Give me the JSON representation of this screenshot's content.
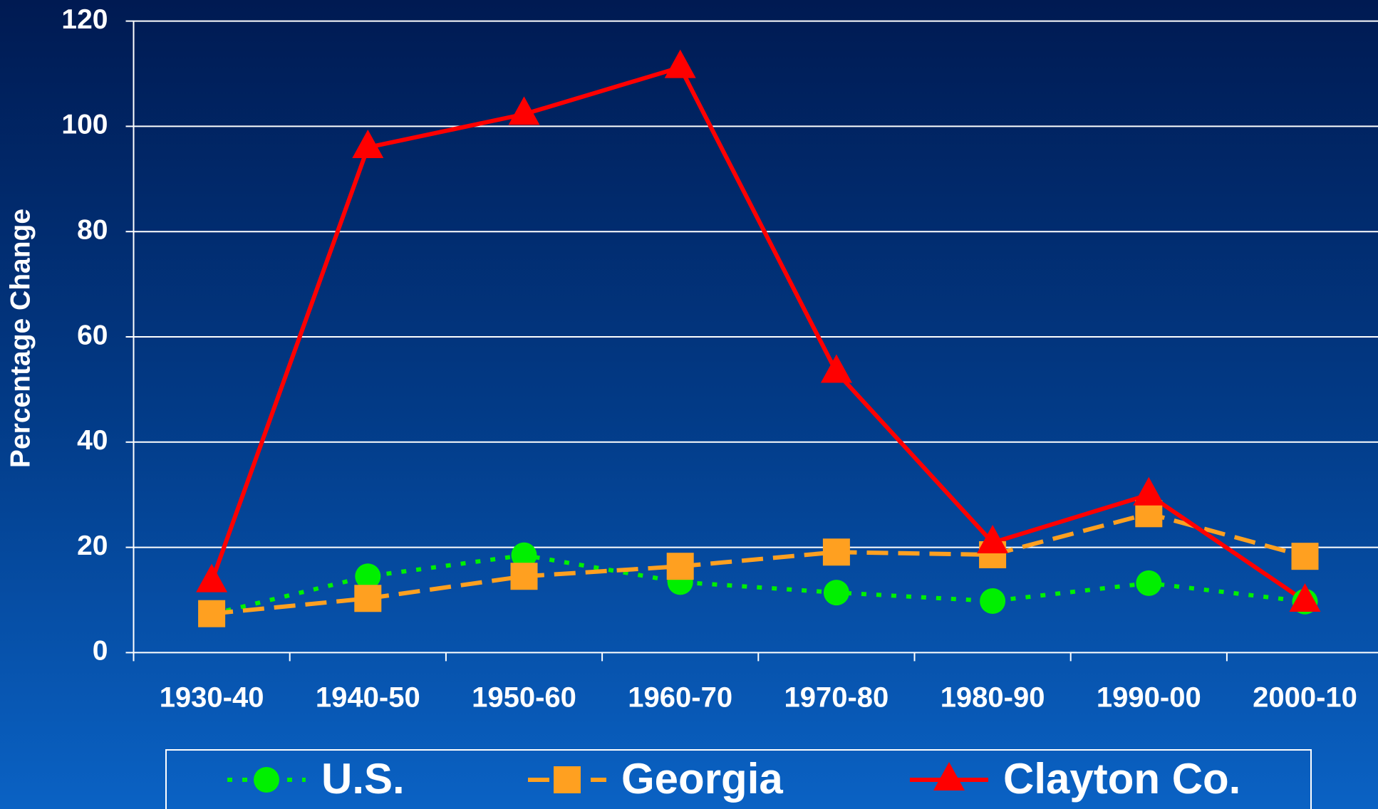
{
  "chart_data": {
    "type": "line",
    "y_label": "Percentage Change",
    "categories": [
      "1930-40",
      "1940-50",
      "1950-60",
      "1960-70",
      "1970-80",
      "1980-90",
      "1990-00",
      "2000-10"
    ],
    "series": [
      {
        "name": "U.S.",
        "color": "#00f000",
        "line_style": "dotted",
        "marker": "circle",
        "values": [
          7.3,
          14.5,
          18.5,
          13.4,
          11.4,
          9.8,
          13.2,
          9.7
        ]
      },
      {
        "name": "Georgia",
        "color": "#ffa020",
        "line_style": "dashed",
        "marker": "square",
        "values": [
          7.4,
          10.3,
          14.5,
          16.4,
          19.1,
          18.6,
          26.4,
          18.3
        ]
      },
      {
        "name": "Clayton Co.",
        "color": "#ff0000",
        "line_style": "solid",
        "marker": "triangle",
        "values": [
          13.5,
          96.0,
          102.3,
          111.2,
          53.3,
          20.9,
          30.0,
          9.8
        ]
      }
    ],
    "ylim": [
      0,
      120
    ],
    "yticks": [
      0,
      20,
      40,
      60,
      80,
      100,
      120
    ],
    "grid": true,
    "legend": "bottom"
  }
}
